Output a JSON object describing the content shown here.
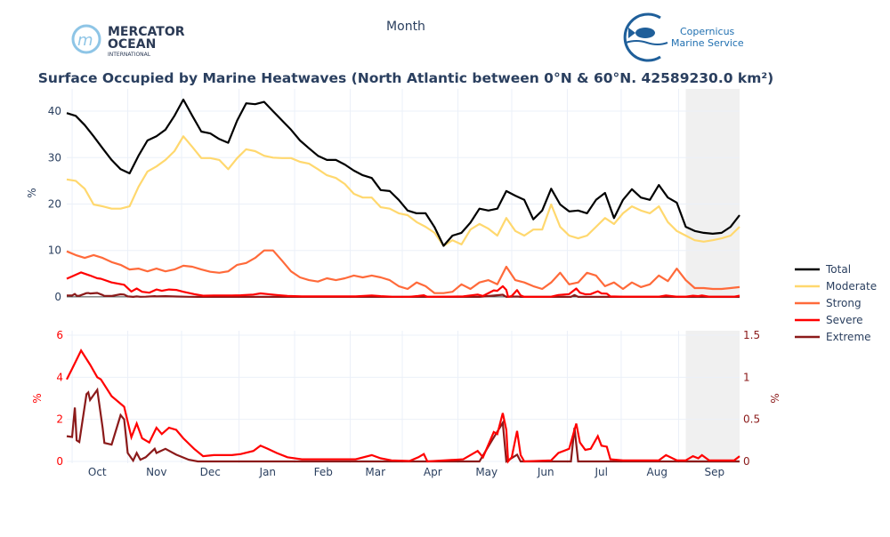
{
  "header": {
    "xaxis_title": "Month",
    "logo_left": {
      "line1": "MERCATOR",
      "line2": "OCEAN",
      "line3": "INTERNATIONAL"
    },
    "logo_right": {
      "line1": "Copernicus",
      "line2": "Marine Service"
    }
  },
  "colors": {
    "total": "#000000",
    "moderate": "#ffd86e",
    "strong": "#ff6a3a",
    "severe": "#ff0000",
    "extreme": "#8b1a1a",
    "title": "#2a3f5f",
    "shade": "#f0f0f0"
  },
  "chart_data": [
    {
      "type": "line",
      "title": "Surface Occupied by Marine Heatwaves (North Atlantic between 0°N & 60°N. 42589230.0 km²)",
      "xlabel": "Month",
      "ylabel": "%",
      "xunit": "days since start of period",
      "xlim": [
        0,
        375
      ],
      "ylim": [
        -0.4,
        44.8
      ],
      "yticks": [
        0,
        10,
        20,
        30,
        40
      ],
      "xticks": [
        {
          "label": "Oct",
          "x": 17
        },
        {
          "label": "Nov",
          "x": 50
        },
        {
          "label": "Dec",
          "x": 80
        },
        {
          "label": "Jan",
          "x": 112
        },
        {
          "label": "Feb",
          "x": 143
        },
        {
          "label": "Mar",
          "x": 172
        },
        {
          "label": "Apr",
          "x": 204
        },
        {
          "label": "May",
          "x": 234
        },
        {
          "label": "Jun",
          "x": 267
        },
        {
          "label": "Jul",
          "x": 298
        },
        {
          "label": "Aug",
          "x": 329
        },
        {
          "label": "Sep",
          "x": 361
        }
      ],
      "month_starts": [
        3,
        34,
        64,
        96,
        127,
        158,
        187,
        218,
        248,
        279,
        309,
        341
      ],
      "shaded_range": [
        345,
        375
      ],
      "grid": true,
      "legend_placement": "right",
      "x_step": 5,
      "series": [
        {
          "name": "Total",
          "key": "total",
          "values": [
            39.6,
            39,
            37,
            34.6,
            32,
            29.5,
            27.5,
            26.6,
            30.4,
            33.7,
            34.6,
            36,
            39,
            42.5,
            39,
            35.6,
            35.2,
            34,
            33.2,
            38,
            41.7,
            41.5,
            42,
            40,
            38,
            36,
            33.7,
            32,
            30.4,
            29.5,
            29.5,
            28.5,
            27.2,
            26.2,
            25.6,
            23,
            22.8,
            20.9,
            18.6,
            18,
            18,
            15,
            11,
            13.2,
            13.8,
            16,
            19,
            18.6,
            19,
            22.8,
            21.8,
            20.9,
            16.7,
            18.6,
            23.3,
            19.9,
            18.4,
            18.6,
            18,
            20.9,
            22.4,
            17,
            20.9,
            23.2,
            21.4,
            20.9,
            24.1,
            21.4,
            20.3,
            15.1,
            14.2,
            13.8,
            13.6,
            13.8,
            15.1,
            17.6
          ]
        },
        {
          "name": "Moderate",
          "key": "moderate",
          "values": [
            25.3,
            25,
            23.3,
            19.9,
            19.5,
            19,
            19,
            19.5,
            23.7,
            27,
            28.1,
            29.5,
            31.4,
            34.6,
            32.3,
            29.9,
            29.9,
            29.5,
            27.5,
            29.9,
            31.8,
            31.4,
            30.4,
            30,
            29.9,
            29.9,
            29.1,
            28.7,
            27.5,
            26.2,
            25.6,
            24.3,
            22.2,
            21.4,
            21.4,
            19.3,
            19,
            18,
            17.6,
            16.1,
            15.1,
            13.8,
            11,
            12.2,
            11.3,
            14.5,
            15.7,
            14.7,
            13.2,
            17,
            14.2,
            13.2,
            14.5,
            14.5,
            19.9,
            15.1,
            13.2,
            12.6,
            13.2,
            15.1,
            17,
            15.7,
            18,
            19.5,
            18.6,
            18,
            19.5,
            16.1,
            14.2,
            13.2,
            12.2,
            11.9,
            12.2,
            12.6,
            13.2,
            15.1
          ]
        },
        {
          "name": "Strong",
          "key": "strong",
          "values": [
            9.8,
            9,
            8.4,
            9,
            8.4,
            7.5,
            6.9,
            5.9,
            6.1,
            5.5,
            6.1,
            5.5,
            5.9,
            6.7,
            6.5,
            5.9,
            5.4,
            5.2,
            5.5,
            6.9,
            7.3,
            8.4,
            10,
            10,
            7.8,
            5.5,
            4.2,
            3.6,
            3.3,
            4,
            3.6,
            4,
            4.6,
            4.2,
            4.6,
            4.2,
            3.6,
            2.3,
            1.7,
            3.1,
            2.3,
            0.8,
            0.8,
            1.1,
            2.7,
            1.7,
            3.1,
            3.6,
            2.7,
            6.5,
            3.6,
            3.1,
            2.3,
            1.7,
            3.1,
            5.2,
            2.7,
            3.1,
            5.2,
            4.6,
            2.3,
            3.1,
            1.7,
            3.1,
            2.1,
            2.7,
            4.6,
            3.4,
            6.1,
            3.6,
            1.9,
            1.9,
            1.7,
            1.7,
            1.9,
            2.1
          ]
        },
        {
          "name": "Severe",
          "key": "severe",
          "points": [
            [
              0,
              3.9
            ],
            [
              3,
              4.4
            ],
            [
              8,
              5.27
            ],
            [
              13,
              4.6
            ],
            [
              17,
              4.0
            ],
            [
              19,
              3.9
            ],
            [
              25,
              3.1
            ],
            [
              32,
              2.6
            ],
            [
              36,
              1.15
            ],
            [
              39,
              1.8
            ],
            [
              42,
              1.1
            ],
            [
              46,
              0.9
            ],
            [
              50,
              1.6
            ],
            [
              53,
              1.3
            ],
            [
              57,
              1.6
            ],
            [
              61,
              1.5
            ],
            [
              65,
              1.1
            ],
            [
              71,
              0.6
            ],
            [
              76,
              0.25
            ],
            [
              82,
              0.3
            ],
            [
              92,
              0.3
            ],
            [
              97,
              0.35
            ],
            [
              104,
              0.5
            ],
            [
              108,
              0.75
            ],
            [
              112,
              0.6
            ],
            [
              117,
              0.4
            ],
            [
              123,
              0.2
            ],
            [
              131,
              0.1
            ],
            [
              161,
              0.1
            ],
            [
              170,
              0.3
            ],
            [
              175,
              0.15
            ],
            [
              181,
              0.05
            ],
            [
              191,
              0.02
            ],
            [
              196,
              0.2
            ],
            [
              199,
              0.35
            ],
            [
              201,
              0
            ],
            [
              221,
              0.1
            ],
            [
              229,
              0.5
            ],
            [
              232,
              0.2
            ],
            [
              238,
              1.4
            ],
            [
              240,
              1.3
            ],
            [
              243,
              2.3
            ],
            [
              245,
              1.5
            ],
            [
              246,
              0
            ],
            [
              248,
              0.2
            ],
            [
              251,
              1.45
            ],
            [
              253,
              0.3
            ],
            [
              255,
              0
            ],
            [
              270,
              0.05
            ],
            [
              274,
              0.4
            ],
            [
              280,
              0.6
            ],
            [
              284,
              1.8
            ],
            [
              286,
              0.9
            ],
            [
              289,
              0.55
            ],
            [
              292,
              0.6
            ],
            [
              296,
              1.2
            ],
            [
              298,
              0.75
            ],
            [
              301,
              0.7
            ],
            [
              303,
              0.1
            ],
            [
              310,
              0.05
            ],
            [
              330,
              0.05
            ],
            [
              334,
              0.3
            ],
            [
              340,
              0.05
            ],
            [
              345,
              0.05
            ],
            [
              349,
              0.25
            ],
            [
              352,
              0.15
            ],
            [
              354,
              0.3
            ],
            [
              358,
              0.05
            ],
            [
              372,
              0.05
            ],
            [
              375,
              0.25
            ]
          ]
        },
        {
          "name": "Extreme",
          "key": "extreme",
          "points": [
            [
              0,
              0.3
            ],
            [
              3,
              0.29
            ],
            [
              4.5,
              0.64
            ],
            [
              5.5,
              0.25
            ],
            [
              7,
              0.23
            ],
            [
              11,
              0.8
            ],
            [
              12,
              0.82
            ],
            [
              13,
              0.73
            ],
            [
              17,
              0.85
            ],
            [
              20,
              0.4
            ],
            [
              21,
              0.22
            ],
            [
              25,
              0.2
            ],
            [
              30,
              0.55
            ],
            [
              32,
              0.5
            ],
            [
              34,
              0.1
            ],
            [
              37,
              0.01
            ],
            [
              39,
              0.1
            ],
            [
              41,
              0.02
            ],
            [
              44,
              0.05
            ],
            [
              49,
              0.15
            ],
            [
              50,
              0.1
            ],
            [
              55,
              0.15
            ],
            [
              61,
              0.08
            ],
            [
              68,
              0.02
            ],
            [
              73,
              0
            ],
            [
              230,
              0
            ],
            [
              237,
              0.25
            ],
            [
              243,
              0.46
            ],
            [
              245,
              0
            ],
            [
              251,
              0.08
            ],
            [
              253,
              0
            ],
            [
              281,
              0
            ],
            [
              283,
              0.4
            ],
            [
              285,
              0
            ],
            [
              375,
              0
            ]
          ]
        }
      ]
    },
    {
      "type": "line",
      "ylabel_left": "%",
      "ylabel_right": "%",
      "ylim_left": [
        0,
        6
      ],
      "ylim_right": [
        0,
        1.5
      ],
      "yticks_left": [
        "0",
        "2",
        "4",
        "6"
      ],
      "yticks_right": [
        "0",
        "0.5",
        "1",
        "1.5"
      ],
      "series_left": "Severe",
      "series_right": "Extreme"
    }
  ]
}
